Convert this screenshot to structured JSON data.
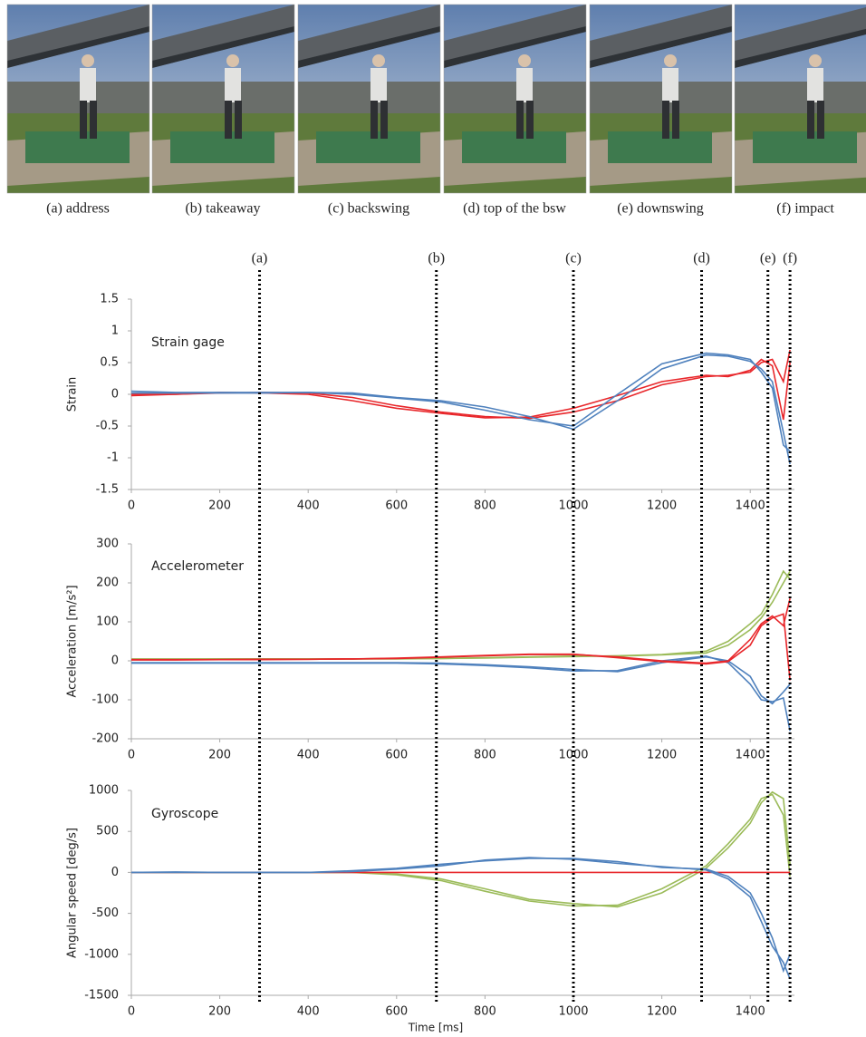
{
  "photos": {
    "captions": [
      "(a) address",
      "(b) takeaway",
      "(c) backswing",
      "(d) top of the bsw",
      "(e) downswing",
      "(f) impact"
    ]
  },
  "phase_markers": {
    "labels": [
      "(a)",
      "(b)",
      "(c)",
      "(d)",
      "(e)",
      "(f)"
    ],
    "x": [
      290,
      690,
      1000,
      1290,
      1440,
      1490
    ]
  },
  "chart_data": [
    {
      "type": "line",
      "title": "Strain gage",
      "ylabel": "Strain",
      "x": [
        0,
        100,
        200,
        300,
        400,
        500,
        600,
        700,
        800,
        900,
        1000,
        1100,
        1200,
        1300,
        1350,
        1400,
        1425,
        1450,
        1475,
        1490
      ],
      "series": [
        {
          "color": "#e8262a",
          "values": [
            0,
            0,
            0.02,
            0.03,
            0.02,
            -0.05,
            -0.18,
            -0.28,
            -0.35,
            -0.38,
            -0.28,
            -0.1,
            0.15,
            0.28,
            0.3,
            0.35,
            0.5,
            0.55,
            0.2,
            0.7
          ]
        },
        {
          "color": "#e8262a",
          "values": [
            -0.02,
            0,
            0.03,
            0.02,
            0,
            -0.1,
            -0.22,
            -0.3,
            -0.37,
            -0.36,
            -0.22,
            -0.02,
            0.2,
            0.3,
            0.28,
            0.38,
            0.55,
            0.45,
            -0.4,
            0.5
          ]
        },
        {
          "color": "#4f81bd",
          "values": [
            0.05,
            0.03,
            0.03,
            0.03,
            0.03,
            0.02,
            -0.05,
            -0.1,
            -0.2,
            -0.35,
            -0.55,
            -0.1,
            0.4,
            0.62,
            0.6,
            0.52,
            0.4,
            0.2,
            -0.6,
            -1.1
          ]
        },
        {
          "color": "#4f81bd",
          "values": [
            0.02,
            0.02,
            0.02,
            0.02,
            0.03,
            0,
            -0.06,
            -0.12,
            -0.25,
            -0.4,
            -0.5,
            0,
            0.48,
            0.65,
            0.62,
            0.55,
            0.35,
            0.1,
            -0.8,
            -0.9
          ]
        }
      ],
      "xlim": [
        0,
        1500
      ],
      "xticks": [
        0,
        200,
        400,
        600,
        800,
        1000,
        1200,
        1400
      ],
      "ylim": [
        -1.5,
        1.5
      ],
      "yticks": [
        1.5,
        1,
        0.5,
        0,
        -0.5,
        -1,
        -1.5
      ]
    },
    {
      "type": "line",
      "title": "Accelerometer",
      "ylabel": "Acceleration [m/s²]",
      "x": [
        0,
        100,
        200,
        300,
        400,
        500,
        600,
        700,
        800,
        900,
        1000,
        1100,
        1200,
        1300,
        1350,
        1400,
        1425,
        1450,
        1475,
        1490
      ],
      "series": [
        {
          "color": "#9bbb59",
          "values": [
            5,
            5,
            5,
            5,
            5,
            5,
            6,
            6,
            8,
            10,
            12,
            12,
            15,
            20,
            40,
            80,
            110,
            150,
            200,
            230
          ]
        },
        {
          "color": "#9bbb59",
          "values": [
            4,
            4,
            5,
            5,
            5,
            5,
            5,
            6,
            7,
            9,
            11,
            13,
            16,
            25,
            50,
            95,
            120,
            170,
            230,
            210
          ]
        },
        {
          "color": "#4f81bd",
          "values": [
            -5,
            -5,
            -5,
            -5,
            -5,
            -5,
            -5,
            -6,
            -10,
            -15,
            -22,
            -28,
            -5,
            10,
            0,
            -40,
            -90,
            -110,
            -80,
            -60
          ]
        },
        {
          "color": "#4f81bd",
          "values": [
            -6,
            -6,
            -6,
            -6,
            -6,
            -6,
            -6,
            -8,
            -12,
            -18,
            -26,
            -25,
            0,
            12,
            -5,
            -60,
            -100,
            -105,
            -95,
            -180
          ]
        },
        {
          "color": "#e8262a",
          "values": [
            3,
            3,
            3,
            4,
            4,
            5,
            7,
            10,
            14,
            17,
            17,
            8,
            -2,
            -8,
            -2,
            40,
            90,
            110,
            120,
            -50
          ]
        },
        {
          "color": "#e8262a",
          "values": [
            2,
            2,
            3,
            3,
            4,
            5,
            6,
            9,
            13,
            16,
            16,
            10,
            0,
            -6,
            0,
            55,
            95,
            115,
            90,
            160
          ]
        }
      ],
      "xlim": [
        0,
        1500
      ],
      "xticks": [
        0,
        200,
        400,
        600,
        800,
        1000,
        1200,
        1400
      ],
      "ylim": [
        -200,
        300
      ],
      "yticks": [
        300,
        200,
        100,
        0,
        -100,
        -200
      ]
    },
    {
      "type": "line",
      "title": "Gyroscope",
      "ylabel": "Angular speed [deg/s]",
      "xlabel": "Time [ms]",
      "x": [
        0,
        100,
        200,
        300,
        400,
        500,
        600,
        700,
        800,
        900,
        1000,
        1100,
        1200,
        1300,
        1350,
        1400,
        1425,
        1450,
        1475,
        1490
      ],
      "series": [
        {
          "color": "#9bbb59",
          "values": [
            0,
            0,
            0,
            0,
            0,
            0,
            -20,
            -80,
            -200,
            -330,
            -380,
            -420,
            -250,
            50,
            300,
            600,
            850,
            980,
            900,
            100
          ]
        },
        {
          "color": "#9bbb59",
          "values": [
            0,
            0,
            0,
            0,
            0,
            0,
            -30,
            -100,
            -230,
            -350,
            -410,
            -400,
            -200,
            80,
            350,
            650,
            900,
            950,
            700,
            -50
          ]
        },
        {
          "color": "#e8262a",
          "values": [
            0,
            0,
            0,
            0,
            0,
            0,
            0,
            0,
            0,
            0,
            0,
            0,
            0,
            0,
            0,
            0,
            0,
            0,
            0,
            0
          ]
        },
        {
          "color": "#4f81bd",
          "values": [
            0,
            0,
            0,
            0,
            0,
            20,
            50,
            100,
            140,
            170,
            170,
            130,
            60,
            40,
            -50,
            -250,
            -500,
            -800,
            -1200,
            -1000
          ]
        },
        {
          "color": "#4f81bd",
          "values": [
            0,
            5,
            0,
            0,
            0,
            10,
            40,
            80,
            150,
            180,
            160,
            110,
            70,
            30,
            -80,
            -300,
            -600,
            -900,
            -1100,
            -1300
          ]
        }
      ],
      "xlim": [
        0,
        1500
      ],
      "xticks": [
        0,
        200,
        400,
        600,
        800,
        1000,
        1200,
        1400
      ],
      "ylim": [
        -1500,
        1000
      ],
      "yticks": [
        1000,
        500,
        0,
        -500,
        -1000,
        -1500
      ]
    }
  ]
}
